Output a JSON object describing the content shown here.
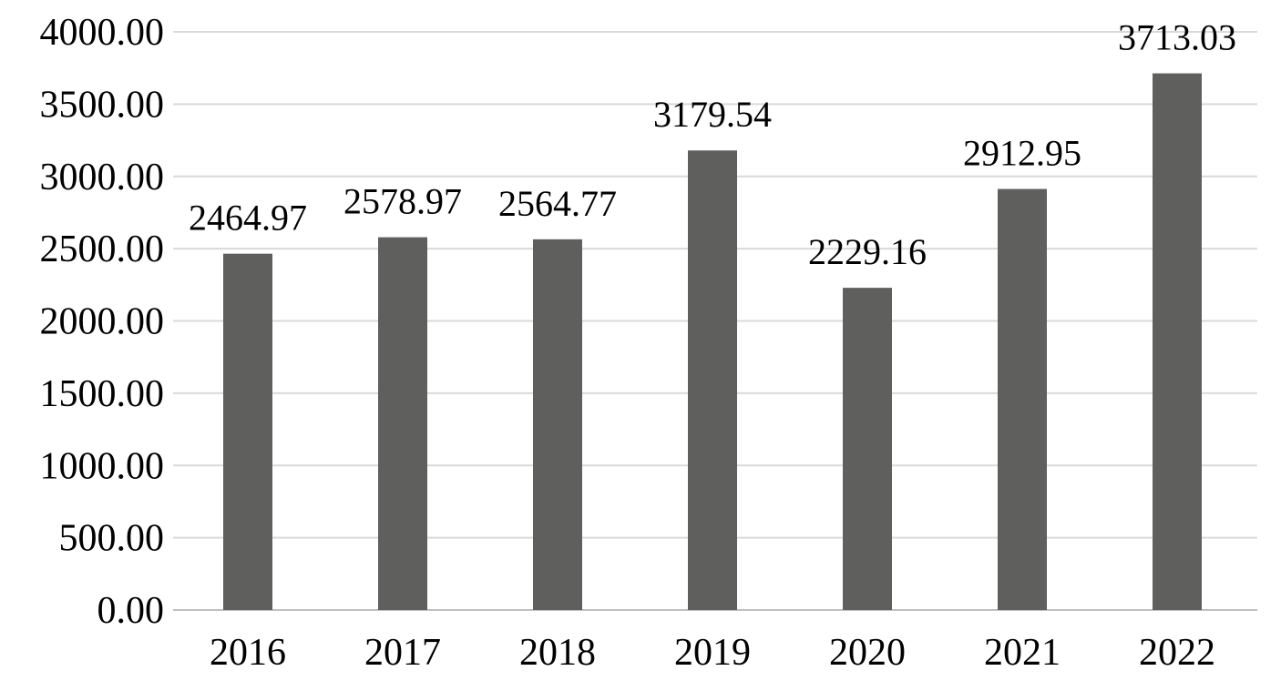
{
  "chart_data": {
    "type": "bar",
    "title": "",
    "xlabel": "",
    "ylabel": "",
    "categories": [
      "2016",
      "2017",
      "2018",
      "2019",
      "2020",
      "2021",
      "2022"
    ],
    "values": [
      2464.97,
      2578.97,
      2564.77,
      3179.54,
      2229.16,
      2912.95,
      3713.03
    ],
    "data_labels": [
      "2464.97",
      "2578.97",
      "2564.77",
      "3179.54",
      "2229.16",
      "2912.95",
      "3713.03"
    ],
    "ylim": [
      0,
      4000
    ],
    "yticks": [
      0,
      500,
      1000,
      1500,
      2000,
      2500,
      3000,
      3500,
      4000
    ],
    "ytick_labels": [
      "0.00",
      "500.00",
      "1000.00",
      "1500.00",
      "2000.00",
      "2500.00",
      "3000.00",
      "3500.00",
      "4000.00"
    ],
    "grid": true,
    "legend": "none",
    "colors": {
      "bar": "#5f5f5e",
      "grid": "#d9d9d9"
    }
  }
}
